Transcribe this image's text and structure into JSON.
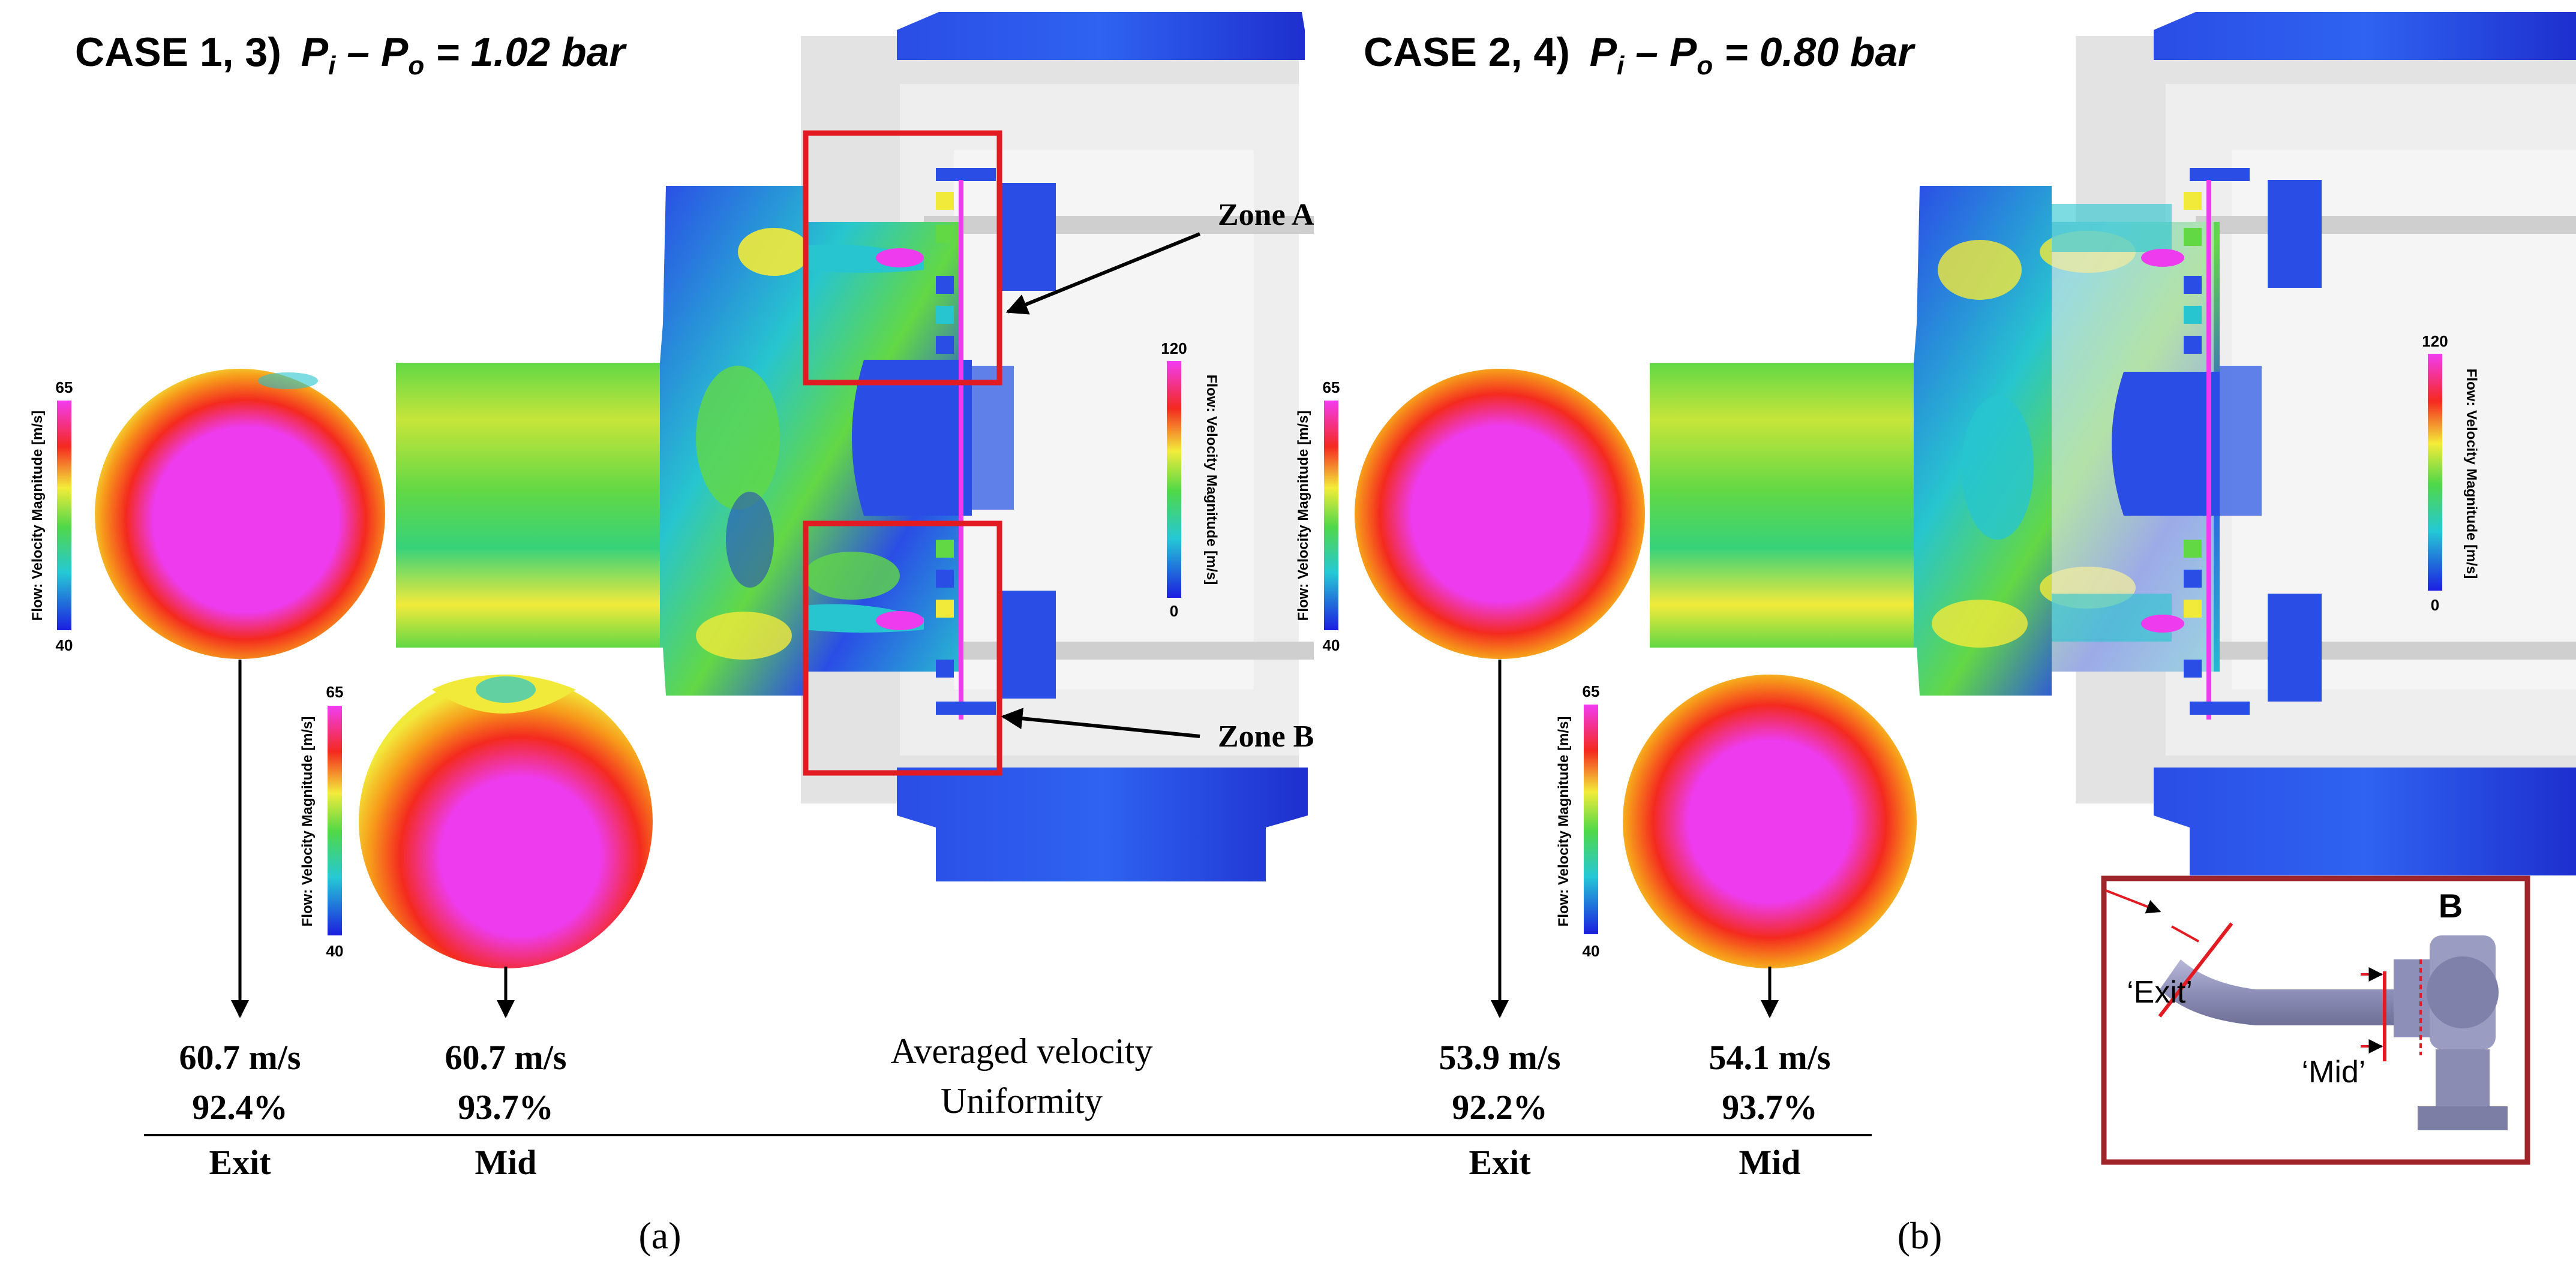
{
  "panel_a": {
    "case_title": "CASE 1, 3)",
    "pressure_eq": [
      "P",
      "i",
      " – P",
      "o",
      " = 1.02 bar"
    ],
    "zone_a": "Zone A",
    "zone_b": "Zone B",
    "legend_main": {
      "max": "120",
      "min": "0",
      "title": "Flow: Velocity Magnitude [m/s]"
    },
    "legend_exit": {
      "max": "65",
      "min": "40",
      "title": "Flow: Velocity Magnitude [m/s]"
    },
    "legend_mid": {
      "max": "65",
      "min": "40",
      "title": "Flow: Velocity Magnitude [m/s]"
    },
    "exit_velocity": "60.7 m/s",
    "exit_uniformity": "92.4%",
    "exit_label": "Exit",
    "mid_velocity": "60.7 m/s",
    "mid_uniformity": "93.7%",
    "mid_label": "Mid",
    "caption": "(a)"
  },
  "center_legend": {
    "line1": "Averaged velocity",
    "line2": "Uniformity"
  },
  "panel_b": {
    "case_title": "CASE 2, 4)",
    "pressure_eq": [
      "P",
      "i",
      " – P",
      "o",
      " = 0.80 bar"
    ],
    "legend_main": {
      "max": "120",
      "min": "0",
      "title": "Flow: Velocity Magnitude [m/s]"
    },
    "legend_exit": {
      "max": "65",
      "min": "40",
      "title": "Flow: Velocity Magnitude [m/s]"
    },
    "legend_mid": {
      "max": "65",
      "min": "40",
      "title": "Flow: Velocity Magnitude [m/s]"
    },
    "exit_velocity": "53.9 m/s",
    "exit_uniformity": "92.2%",
    "exit_label": "Exit",
    "mid_velocity": "54.1 m/s",
    "mid_uniformity": "93.7%",
    "mid_label": "Mid",
    "caption": "(b)"
  },
  "inset": {
    "point_label": "B",
    "exit_label": "‘Exit’",
    "mid_label": "‘Mid’"
  },
  "colors": {
    "magenta": "#ee3bee",
    "red": "#f42a1f",
    "orange": "#f79a1a",
    "yellow": "#f2ea3a",
    "green": "#62d845",
    "cyan": "#27c5cf",
    "blue": "#2a4de6",
    "darkblue": "#1e2fcf",
    "box_red": "#e21b23",
    "inset_border": "#a0252a"
  }
}
